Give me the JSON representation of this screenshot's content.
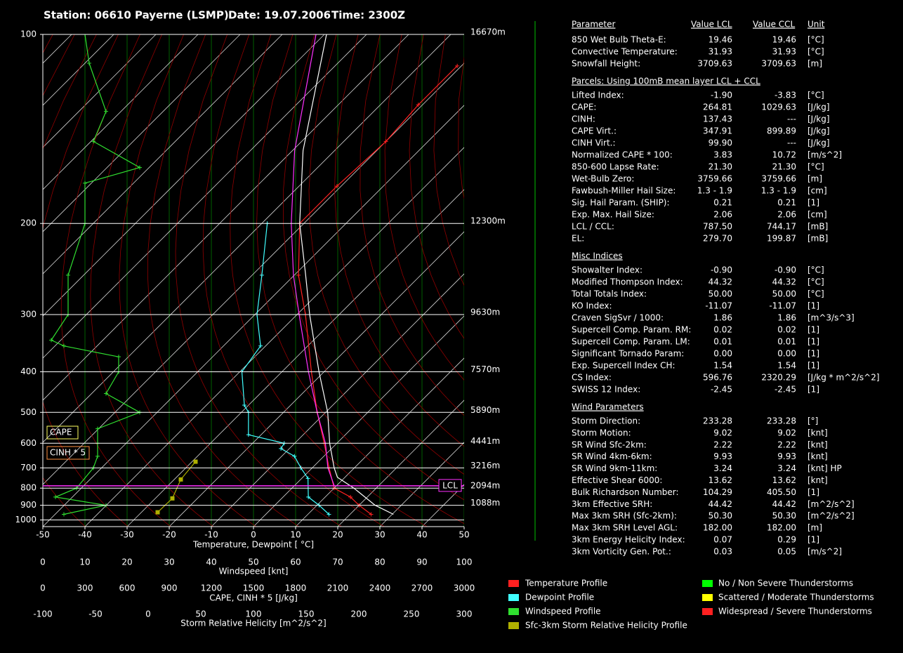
{
  "chart_data": {
    "type": "skewt",
    "title": [
      "Station: 06610 Payerne (LSMP)",
      "Date: 19.07.2006",
      "Time: 2300Z"
    ],
    "xlim": [
      -50,
      50
    ],
    "xticks": [
      -50,
      -40,
      -30,
      -20,
      -10,
      0,
      10,
      20,
      30,
      40,
      50
    ],
    "xlabel": "Temperature, Dewpoint [ °C]",
    "ylim": [
      100,
      1050
    ],
    "yticks": [
      100,
      200,
      300,
      400,
      500,
      600,
      700,
      800,
      900,
      1000
    ],
    "heights": [
      "16670m",
      "12300m",
      "9630m",
      "7570m",
      "5890m",
      "4441m",
      "3216m",
      "2094m",
      "1088m",
      null
    ],
    "grid": true,
    "wind_axis": {
      "label": "Windspeed [knt]",
      "lim": [
        0,
        100
      ],
      "ticks": [
        0,
        10,
        20,
        30,
        40,
        50,
        60,
        70,
        80,
        90,
        100
      ]
    },
    "cape_axis": {
      "label": "CAPE, CINH * 5 [J/kg]",
      "lim": [
        0,
        3000
      ],
      "ticks": [
        0,
        300,
        600,
        900,
        1200,
        1500,
        1800,
        2100,
        2400,
        2700,
        3000
      ]
    },
    "srh_axis": {
      "label": "Storm Relative Helicity [m^2/s^2]",
      "lim": [
        -100,
        300
      ],
      "ticks": [
        -100,
        -50,
        0,
        50,
        100,
        150,
        200,
        250,
        300
      ]
    },
    "series": [
      {
        "name": "Temperature Profile",
        "color": "#ff2020",
        "axis": "x",
        "pressure": [
          960,
          900,
          850,
          800,
          700,
          600,
          500,
          400,
          300,
          250,
          200,
          172,
          145,
          127,
          111
        ],
        "values": [
          25,
          20,
          16,
          10,
          4,
          -3,
          -12,
          -23,
          -38,
          -49,
          -61,
          -61,
          -60,
          -61,
          -61
        ]
      },
      {
        "name": "Dewpoint Profile",
        "color": "#40ffff",
        "axis": "x",
        "pressure": [
          960,
          900,
          850,
          750,
          700,
          650,
          620,
          600,
          570,
          500,
          480,
          400,
          350,
          300,
          250,
          200
        ],
        "values": [
          15,
          10.5,
          6,
          1.5,
          -2.7,
          -7,
          -12,
          -12.5,
          -23,
          -28.3,
          -31,
          -39.5,
          -41.2,
          -49.5,
          -57.7,
          -68.7
        ]
      },
      {
        "name": "Windspeed Profile",
        "color": "#30e030",
        "axis": "wind",
        "pressure": [
          960,
          900,
          850,
          800,
          700,
          650,
          600,
          550,
          500,
          450,
          400,
          370,
          350,
          340,
          300,
          250,
          200,
          170,
          160,
          145,
          130,
          110,
          100
        ],
        "values": [
          5,
          15,
          3,
          8,
          12,
          13,
          13,
          13,
          23,
          15,
          18,
          18,
          5,
          2,
          6,
          6,
          10,
          10,
          23,
          12,
          15,
          11,
          10
        ]
      },
      {
        "name": "Sfc-3km Storm Relative Helicity Profile",
        "color": "#b0b000",
        "axis": "srh",
        "pressure": [
          946,
          858,
          755,
          673
        ],
        "values": [
          9,
          23,
          31,
          45
        ]
      },
      {
        "color": "#ff30ff",
        "axis": "x",
        "pressure": [
          787.5,
          700,
          600,
          500,
          400,
          300,
          250,
          200,
          150,
          100
        ],
        "values": [
          9.5,
          3.7,
          -2.7,
          -12,
          -23.7,
          -39.5,
          -50.2,
          -63,
          -79.5,
          -102
        ]
      },
      {
        "color": "#ffffff",
        "axis": "x",
        "pressure": [
          960,
          900,
          800,
          744,
          700,
          600,
          500,
          400,
          300,
          250,
          200,
          150,
          100
        ],
        "values": [
          30.3,
          23.8,
          14.7,
          8.2,
          5.2,
          -1.7,
          -9.5,
          -21.2,
          -37,
          -47.3,
          -61,
          -77.5,
          -99.5
        ]
      }
    ],
    "lcl": {
      "label": "LCL",
      "pressure": 787.5,
      "color": "#ff30ff"
    },
    "annotations": [
      {
        "text": "CAPE",
        "color": "#ffff60"
      },
      {
        "text": "CINH * 5",
        "color": "#ff9040"
      }
    ]
  },
  "severity_legend": [
    {
      "label": "No / Non Severe Thunderstorms",
      "color": "#00ff00"
    },
    {
      "label": "Scattered / Moderate Thunderstorms",
      "color": "#ffff00"
    },
    {
      "label": "Widespread / Severe Thunderstorms",
      "color": "#ff2020"
    }
  ],
  "table": {
    "header": [
      "Parameter",
      "Value LCL",
      "Value CCL",
      "Unit"
    ],
    "sections": [
      {
        "rows": [
          {
            "label": "850 Wet Bulb Theta-E:",
            "lcl": "19.46",
            "ccl": "19.46",
            "unit": "[°C]",
            "colors": [
              "#ff2020",
              "#ff2020"
            ]
          },
          {
            "label": "Convective Temperature:",
            "lcl": "31.93",
            "ccl": "31.93",
            "unit": "[°C]",
            "colors": [
              "#ff2020",
              "#ff2020"
            ]
          },
          {
            "label": "Snowfall Height:",
            "lcl": "3709.63",
            "ccl": "3709.63",
            "unit": "[m]",
            "colors": [
              "#ffffff",
              "#ffffff"
            ]
          }
        ]
      },
      {
        "title": "Parcels: Using 100mB mean layer LCL + CCL",
        "rows": [
          {
            "label": "Lifted Index:",
            "lcl": "-1.90",
            "ccl": "-3.83",
            "unit": "[°C]",
            "colors": [
              "#ff2020",
              "#ff2020"
            ]
          },
          {
            "label": "CAPE:",
            "lcl": "264.81",
            "ccl": "1029.63",
            "unit": "[J/kg]",
            "colors": [
              "#ff2020",
              "#ffff00"
            ]
          },
          {
            "label": "CINH:",
            "lcl": "137.43",
            "ccl": "---",
            "unit": "[J/kg]",
            "colors": [
              "#ffffff",
              "#ffffff"
            ]
          },
          {
            "label": "CAPE Virt.:",
            "lcl": "347.91",
            "ccl": "899.89",
            "unit": "[J/kg]",
            "colors": [
              "#ff2020",
              "#ffff00"
            ]
          },
          {
            "label": "CINH Virt.:",
            "lcl": "99.90",
            "ccl": "---",
            "unit": "[J/kg]",
            "colors": [
              "#ff2020",
              "#ffffff"
            ]
          },
          {
            "label": "Normalized CAPE * 100:",
            "lcl": "3.83",
            "ccl": "10.72",
            "unit": "[m/s^2]",
            "colors": [
              "#00ff00",
              "#ff2020"
            ]
          },
          {
            "label": "850-600 Lapse Rate:",
            "lcl": "21.30",
            "ccl": "21.30",
            "unit": "[°C]",
            "colors": [
              "#ff2020",
              "#ff2020"
            ]
          },
          {
            "label": "Wet-Bulb Zero:",
            "lcl": "3759.66",
            "ccl": "3759.66",
            "unit": "[m]",
            "colors": [
              "#ffff00",
              "#ffffff"
            ]
          },
          {
            "label": "Fawbush-Miller Hail Size:",
            "lcl": "1.3 - 1.9",
            "ccl": "1.3 - 1.9",
            "unit": "[cm]",
            "colors": [
              "#ffff00",
              "#ffff00"
            ]
          },
          {
            "label": "Sig. Hail Param. (SHIP):",
            "lcl": "0.21",
            "ccl": "0.21",
            "unit": "[1]",
            "colors": [
              "#00ff00",
              "#00ff00"
            ]
          },
          {
            "label": "Exp. Max. Hail Size:",
            "lcl": "2.06",
            "ccl": "2.06",
            "unit": "[cm]",
            "colors": [
              "#ffff00",
              "#ffff00"
            ]
          },
          {
            "label": "LCL / CCL:",
            "lcl": "787.50",
            "ccl": "744.17",
            "unit": "[mB]",
            "colors": [
              "#ffffff",
              "#ffffff"
            ]
          },
          {
            "label": "EL:",
            "lcl": "279.70",
            "ccl": "199.87",
            "unit": "[mB]",
            "colors": [
              "#ff2020",
              "#ff2020"
            ]
          }
        ]
      },
      {
        "title": "Misc Indices",
        "rows": [
          {
            "label": "Showalter Index:",
            "lcl": "-0.90",
            "ccl": "-0.90",
            "unit": "[°C]",
            "colors": [
              "#ff2020",
              "#ff2020"
            ]
          },
          {
            "label": "Modified Thompson Index:",
            "lcl": "44.32",
            "ccl": "44.32",
            "unit": "[°C]",
            "colors": [
              "#ff2020",
              "#ff2020"
            ]
          },
          {
            "label": "Total Totals Index:",
            "lcl": "50.00",
            "ccl": "50.00",
            "unit": "[°C]",
            "colors": [
              "#ff2020",
              "#ff2020"
            ]
          },
          {
            "label": "KO Index:",
            "lcl": "-11.07",
            "ccl": "-11.07",
            "unit": "[1]",
            "colors": [
              "#ff2020",
              "#ff2020"
            ]
          },
          {
            "label": "Craven SigSvr / 1000:",
            "lcl": "1.86",
            "ccl": "1.86",
            "unit": "[m^3/s^3]",
            "colors": [
              "#ffff00",
              "#ffff00"
            ]
          },
          {
            "label": "Supercell Comp. Param. RM:",
            "lcl": "0.02",
            "ccl": "0.02",
            "unit": "[1]",
            "colors": [
              "#00ff00",
              "#00ff00"
            ]
          },
          {
            "label": "Supercell Comp. Param. LM:",
            "lcl": "0.01",
            "ccl": "0.01",
            "unit": "[1]",
            "colors": [
              "#00ff00",
              "#00ff00"
            ]
          },
          {
            "label": "Significant Tornado Param:",
            "lcl": "0.00",
            "ccl": "0.00",
            "unit": "[1]",
            "colors": [
              "#00ff00",
              "#00ff00"
            ]
          },
          {
            "label": "Exp. Supercell Index CH:",
            "lcl": "1.54",
            "ccl": "1.54",
            "unit": "[1]",
            "colors": [
              "#ffff00",
              "#ffff00"
            ]
          },
          {
            "label": "CS Index:",
            "lcl": "596.76",
            "ccl": "2320.29",
            "unit": "[J/kg * m^2/s^2]",
            "colors": [
              "#ffff00",
              "#00ff00"
            ]
          },
          {
            "label": "SWISS 12 Index:",
            "lcl": "-2.45",
            "ccl": "-2.45",
            "unit": "[1]",
            "colors": [
              "#ff2020",
              "#ff2020"
            ]
          }
        ]
      },
      {
        "title": "Wind Parameters",
        "rows": [
          {
            "label": "Storm Direction:",
            "lcl": "233.28",
            "ccl": "233.28",
            "unit": "[°]",
            "colors": [
              "#ffffff",
              "#ffffff"
            ]
          },
          {
            "label": "Storm Motion:",
            "lcl": "9.02",
            "ccl": "9.02",
            "unit": "[knt]",
            "colors": [
              "#ffff00",
              "#ffff00"
            ]
          },
          {
            "label": "SR Wind Sfc-2km:",
            "lcl": "2.22",
            "ccl": "2.22",
            "unit": "[knt]",
            "colors": [
              "#00ff00",
              "#00ff00"
            ]
          },
          {
            "label": "SR Wind 4km-6km:",
            "lcl": "9.93",
            "ccl": "9.93",
            "unit": "[knt]",
            "colors": [
              "#00ff00",
              "#00ff00"
            ]
          },
          {
            "label": "SR Wind 9km-11km:",
            "lcl": "3.24",
            "ccl": "3.24",
            "unit": "[knt] HP",
            "colors": [
              "#ff2020",
              "#ff2020"
            ]
          },
          {
            "label": "Effective Shear 6000:",
            "lcl": "13.62",
            "ccl": "13.62",
            "unit": "[knt]",
            "colors": [
              "#00ff00",
              "#00ff00"
            ]
          },
          {
            "label": "Bulk Richardson Number:",
            "lcl": "104.29",
            "ccl": "405.50",
            "unit": "[1]",
            "colors": [
              "#ffff00",
              "#ffff00"
            ]
          },
          {
            "label": "3km Effective SRH:",
            "lcl": "44.42",
            "ccl": "44.42",
            "unit": "[m^2/s^2]",
            "colors": [
              "#00ff00",
              "#00ff00"
            ]
          },
          {
            "label": "Max 3km SRH (Sfc-2km):",
            "lcl": "50.30",
            "ccl": "50.30",
            "unit": "[m^2/s^2]",
            "colors": [
              "#00ff00",
              "#00ff00"
            ]
          },
          {
            "label": "Max 3km SRH Level AGL:",
            "lcl": "182.00",
            "ccl": "182.00",
            "unit": "[m]",
            "colors": [
              "#00ff00",
              "#00ff00"
            ]
          },
          {
            "label": "3km Energy Helicity Index:",
            "lcl": "0.07",
            "ccl": "0.29",
            "unit": "[1]",
            "colors": [
              "#00ff00",
              "#00ff00"
            ]
          },
          {
            "label": "3km Vorticity Gen. Pot.:",
            "lcl": "0.03",
            "ccl": "0.05",
            "unit": "[m/s^2]",
            "colors": [
              "#00ff00",
              "#00ff00"
            ]
          }
        ]
      }
    ]
  }
}
